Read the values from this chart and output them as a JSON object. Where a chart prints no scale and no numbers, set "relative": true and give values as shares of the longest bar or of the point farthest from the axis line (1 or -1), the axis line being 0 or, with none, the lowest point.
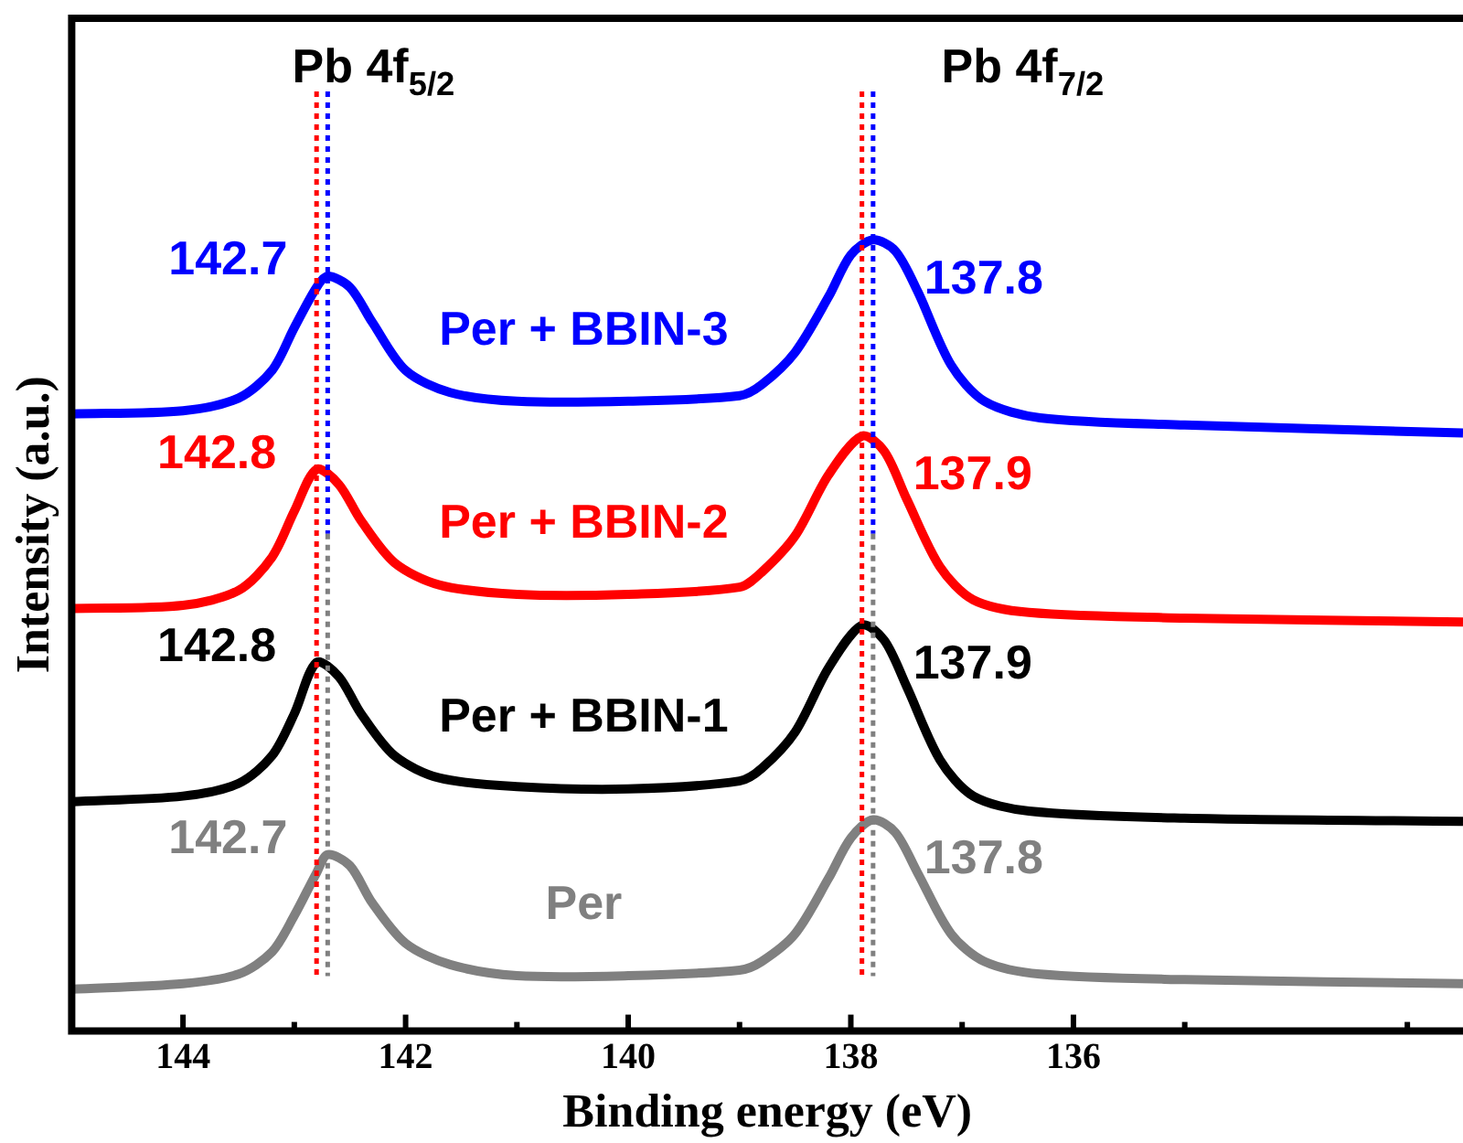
{
  "chart_data": {
    "type": "line",
    "xlabel": "Binding energy (eV)",
    "ylabel": "Intensity (a.u.)",
    "relative": true,
    "xlim": [
      145,
      132.5
    ],
    "xticks": [
      144,
      142,
      140,
      138,
      136,
      {
        "value": 143,
        "label": null
      },
      {
        "value": 141,
        "label": null
      },
      {
        "value": 139,
        "label": null
      },
      {
        "value": 137,
        "label": null
      },
      {
        "value": 135,
        "label": null
      },
      {
        "value": 133,
        "label": null
      }
    ],
    "series": [
      {
        "name": "Per",
        "color": "#808080",
        "x": [
          145,
          144,
          143.5,
          143.2,
          143.0,
          142.8,
          142.7,
          142.5,
          142.3,
          142.0,
          141.6,
          141,
          140,
          139,
          138.8,
          138.5,
          138.2,
          138.0,
          137.8,
          137.6,
          137.4,
          137.1,
          136.8,
          136.3,
          135,
          132.5
        ],
        "values": [
          0.053,
          0.06,
          0.072,
          0.1,
          0.146,
          0.2,
          0.223,
          0.209,
          0.162,
          0.111,
          0.084,
          0.07,
          0.07,
          0.077,
          0.088,
          0.123,
          0.193,
          0.244,
          0.267,
          0.251,
          0.2,
          0.123,
          0.088,
          0.072,
          0.065,
          0.06
        ]
      },
      {
        "name": "Per + BBIN-1",
        "color": "#000000",
        "x": [
          145,
          144,
          143.5,
          143.2,
          143.0,
          142.8,
          142.6,
          142.4,
          142.1,
          141.7,
          141,
          140,
          139,
          138.8,
          138.5,
          138.2,
          137.9,
          137.7,
          137.5,
          137.2,
          136.9,
          136.4,
          135,
          132.5
        ],
        "values": [
          0.29,
          0.297,
          0.313,
          0.348,
          0.401,
          0.466,
          0.448,
          0.401,
          0.348,
          0.32,
          0.309,
          0.306,
          0.316,
          0.332,
          0.378,
          0.459,
          0.513,
          0.494,
          0.436,
          0.343,
          0.297,
          0.278,
          0.269,
          0.265
        ]
      },
      {
        "name": "Per + BBIN-2",
        "color": "#ff0000",
        "x": [
          145,
          144,
          143.5,
          143.2,
          143.0,
          142.8,
          142.6,
          142.4,
          142.1,
          141.7,
          141,
          140,
          139,
          138.8,
          138.5,
          138.2,
          137.9,
          137.7,
          137.5,
          137.2,
          136.9,
          136.4,
          135,
          132.5
        ],
        "values": [
          0.534,
          0.538,
          0.557,
          0.599,
          0.657,
          0.71,
          0.691,
          0.645,
          0.592,
          0.564,
          0.552,
          0.552,
          0.561,
          0.58,
          0.626,
          0.703,
          0.752,
          0.733,
          0.673,
          0.587,
          0.545,
          0.529,
          0.522,
          0.517
        ]
      },
      {
        "name": "Per + BBIN-3",
        "color": "#0000ff",
        "x": [
          145,
          144,
          143.5,
          143.2,
          143.0,
          142.8,
          142.7,
          142.5,
          142.3,
          142.0,
          141.6,
          141,
          140,
          139,
          138.8,
          138.5,
          138.2,
          138.0,
          137.8,
          137.6,
          137.4,
          137.1,
          136.8,
          136.3,
          135,
          132.5
        ],
        "values": [
          0.78,
          0.784,
          0.8,
          0.835,
          0.889,
          0.94,
          0.954,
          0.94,
          0.896,
          0.835,
          0.807,
          0.796,
          0.796,
          0.803,
          0.817,
          0.858,
          0.928,
          0.981,
          1.0,
          0.986,
          0.935,
          0.842,
          0.796,
          0.775,
          0.766,
          0.756
        ]
      }
    ],
    "ref_lines": [
      {
        "axis": "x",
        "value": 142.7,
        "color": "#0000ff",
        "line_style": "dotted"
      },
      {
        "axis": "x",
        "value": 142.7,
        "color": "#808080",
        "line_style": "dotted"
      },
      {
        "axis": "x",
        "value": 142.8,
        "color": "#ff0000",
        "line_style": "dotted"
      },
      {
        "axis": "x",
        "value": 137.8,
        "color": "#0000ff",
        "line_style": "dotted"
      },
      {
        "axis": "x",
        "value": 137.8,
        "color": "#808080",
        "line_style": "dotted"
      },
      {
        "axis": "x",
        "value": 137.9,
        "color": "#ff0000",
        "line_style": "dotted"
      }
    ],
    "annotations": [
      "Pb 4f$_{5/2}$",
      "Pb 4f$_{7/2}$",
      {
        "text": "142.7",
        "x": 142.7,
        "y": 0.954
      },
      {
        "text": "142.8",
        "x": 142.8,
        "y": 0.71
      },
      {
        "text": "142.8",
        "x": 142.8,
        "y": 0.466
      },
      {
        "text": "142.7",
        "x": 142.7,
        "y": 0.223
      },
      {
        "text": "137.8",
        "x": 137.8,
        "y": 1.0
      },
      {
        "text": "137.9",
        "x": 137.9,
        "y": 0.752
      },
      {
        "text": "137.9",
        "x": 137.9,
        "y": 0.513
      },
      {
        "text": "137.8",
        "x": 137.8,
        "y": 0.267
      }
    ]
  }
}
